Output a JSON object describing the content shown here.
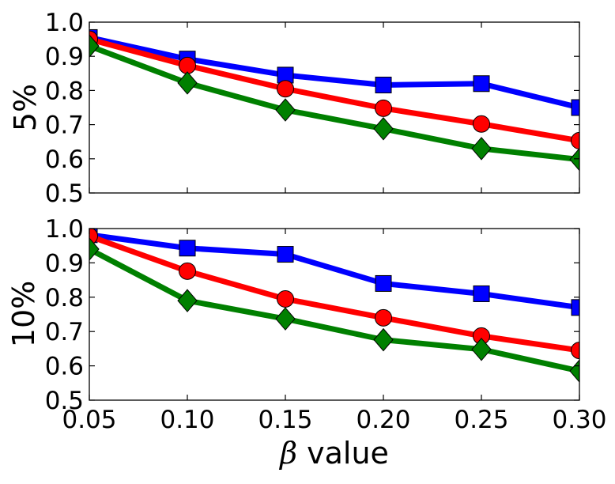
{
  "chart_data": [
    {
      "type": "line",
      "ylabel": "5%",
      "xlabel": "",
      "xlim": [
        0.05,
        0.3
      ],
      "ylim": [
        0.5,
        1.0
      ],
      "x": [
        0.05,
        0.1,
        0.15,
        0.2,
        0.25,
        0.3
      ],
      "yticks": [
        "0.5",
        "0.6",
        "0.7",
        "0.8",
        "0.9",
        "1.0"
      ],
      "xticks": [],
      "grid": false,
      "series": [
        {
          "name": "blue-squares",
          "color": "#0000ff",
          "marker": "square",
          "values": [
            0.955,
            0.892,
            0.845,
            0.816,
            0.82,
            0.75
          ]
        },
        {
          "name": "red-circles",
          "color": "#ff0000",
          "marker": "circle",
          "values": [
            0.95,
            0.873,
            0.805,
            0.748,
            0.702,
            0.653
          ]
        },
        {
          "name": "green-diamonds",
          "color": "#008000",
          "marker": "diamond",
          "values": [
            0.93,
            0.822,
            0.743,
            0.688,
            0.63,
            0.598
          ]
        }
      ]
    },
    {
      "type": "line",
      "ylabel": "10%",
      "xlabel_prefix": "β",
      "xlabel_suffix": " value",
      "xlim": [
        0.05,
        0.3
      ],
      "ylim": [
        0.5,
        1.0
      ],
      "x": [
        0.05,
        0.1,
        0.15,
        0.2,
        0.25,
        0.3
      ],
      "yticks": [
        "0.5",
        "0.6",
        "0.7",
        "0.8",
        "0.9",
        "1.0"
      ],
      "xticks": [
        "0.05",
        "0.10",
        "0.15",
        "0.20",
        "0.25",
        "0.30"
      ],
      "grid": false,
      "series": [
        {
          "name": "blue-squares",
          "color": "#0000ff",
          "marker": "square",
          "values": [
            0.982,
            0.943,
            0.925,
            0.84,
            0.81,
            0.77
          ]
        },
        {
          "name": "red-circles",
          "color": "#ff0000",
          "marker": "circle",
          "values": [
            0.978,
            0.876,
            0.795,
            0.74,
            0.687,
            0.645
          ]
        },
        {
          "name": "green-diamonds",
          "color": "#008000",
          "marker": "diamond",
          "values": [
            0.94,
            0.79,
            0.737,
            0.676,
            0.648,
            0.585
          ]
        }
      ]
    }
  ]
}
